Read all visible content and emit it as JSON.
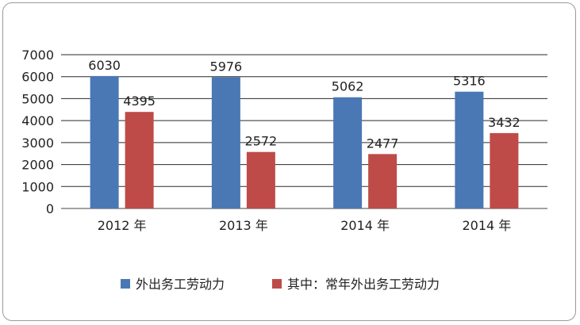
{
  "chart_data": {
    "type": "bar",
    "categories": [
      "2012 年",
      "2013 年",
      "2014 年",
      "2014 年"
    ],
    "series": [
      {
        "name": "外出务工劳动力",
        "values": [
          6030,
          5976,
          5062,
          5316
        ],
        "color": "#4a78b5"
      },
      {
        "name": "其中：常年外出务工劳动力",
        "values": [
          4395,
          2572,
          2477,
          3432
        ],
        "color": "#be4b48"
      }
    ],
    "ylim": [
      0,
      7000
    ],
    "yticks": [
      0,
      1000,
      2000,
      3000,
      4000,
      5000,
      6000,
      7000
    ],
    "grid": true,
    "legend": "bottom-center"
  }
}
